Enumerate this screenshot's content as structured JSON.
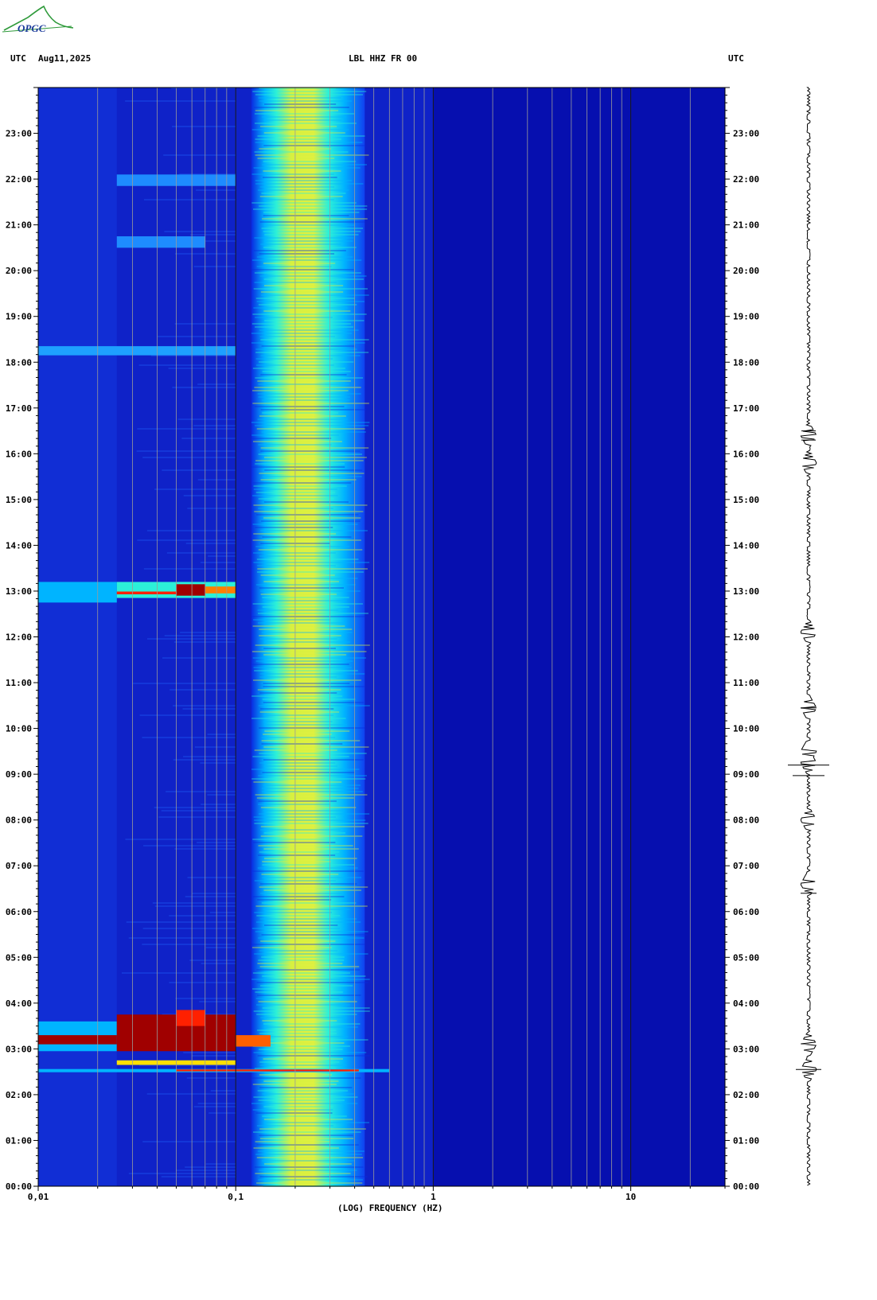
{
  "header": {
    "logo_text": "OPGC",
    "left_label": "UTC",
    "date": "Aug11,2025",
    "station": "LBL HHZ FR 00",
    "right_label": "UTC"
  },
  "chart_data": {
    "type": "heatmap",
    "title": "LBL HHZ FR 00",
    "xlabel": "(LOG) FREQUENCY (HZ)",
    "ylabel": "UTC",
    "x_scale": "log",
    "x_ticks": [
      "0,01",
      "0,1",
      "1",
      "10"
    ],
    "x_tick_values": [
      0.01,
      0.1,
      1,
      10
    ],
    "xlim": [
      0.01,
      30
    ],
    "y_ticks": [
      "00:00",
      "01:00",
      "02:00",
      "03:00",
      "04:00",
      "05:00",
      "06:00",
      "07:00",
      "08:00",
      "09:00",
      "10:00",
      "11:00",
      "12:00",
      "13:00",
      "14:00",
      "15:00",
      "16:00",
      "17:00",
      "18:00",
      "19:00",
      "20:00",
      "21:00",
      "22:00",
      "23:00"
    ],
    "ylim_hours": [
      0,
      24
    ],
    "colormap": [
      "#00009a",
      "#0a2ae0",
      "#00b4ff",
      "#2cf0d8",
      "#d8f040",
      "#ffe000",
      "#ff2000",
      "#a00000"
    ],
    "background_level_color": "#0f22c8",
    "microseism_band_hz": [
      0.12,
      0.45
    ],
    "microseism_peak_hz": [
      0.15,
      0.25
    ],
    "events": [
      {
        "time": "02:33",
        "note": "strong broadband event"
      },
      {
        "time": "03:00-03:40",
        "note": "long-period energy saturated (dark red)"
      },
      {
        "time": "12:58",
        "note": "long-period energy"
      },
      {
        "time": "18:15",
        "note": "weak long-period energy"
      },
      {
        "time": "20:40",
        "note": "weak long-period energy"
      },
      {
        "time": "21:55",
        "note": "weak long-period energy"
      }
    ],
    "trace_events_hours": [
      2.55,
      3.1,
      6.6,
      8.0,
      9.25,
      9.5,
      10.45,
      12.1,
      15.8,
      16.4
    ]
  }
}
